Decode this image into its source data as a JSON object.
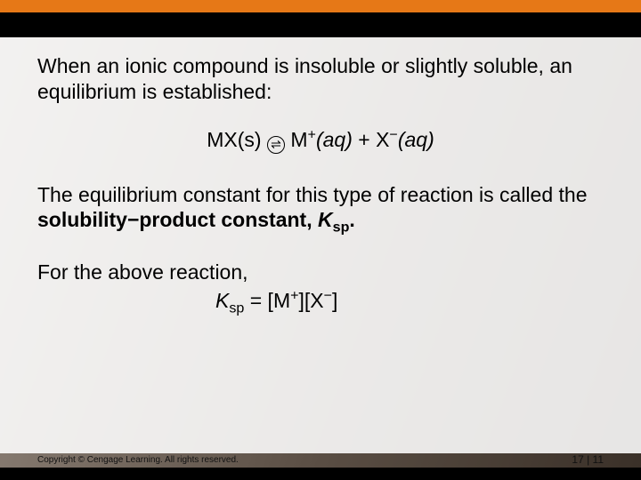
{
  "colors": {
    "accent_bar": "#e67817",
    "black_band": "#000000",
    "panel_bg": "rgba(255,255,255,0.88)",
    "text": "#000000",
    "bg_gradient_stops": [
      "#9a8f85",
      "#7a6e64",
      "#5a4e44",
      "#3a3028"
    ]
  },
  "typography": {
    "body_font": "Arial",
    "body_size_pt": 17,
    "copyright_size_pt": 7
  },
  "text": {
    "para1": "When an ionic compound is insoluble or slightly soluble, an equilibrium is established:",
    "eq_left": "MX(s)",
    "eq_arrow_glyph": "⇌",
    "eq_cation_base": "M",
    "eq_cation_charge": "+",
    "eq_anion_base": "X",
    "eq_anion_charge": "−",
    "eq_state": "(aq)",
    "eq_plus": " + ",
    "para2_a": "The equilibrium constant for this type of reaction is called the ",
    "para2_b": "solubility−product constant, ",
    "ksp_K": "K",
    "ksp_sub": "sp",
    "para2_c": ".",
    "para3": "For the above reaction,",
    "ksp_eq_a": " = [M",
    "ksp_eq_b": "][X",
    "ksp_eq_c": "]"
  },
  "footer": {
    "copyright": "Copyright © Cengage Learning. All rights reserved.",
    "page": "17 | 11"
  }
}
